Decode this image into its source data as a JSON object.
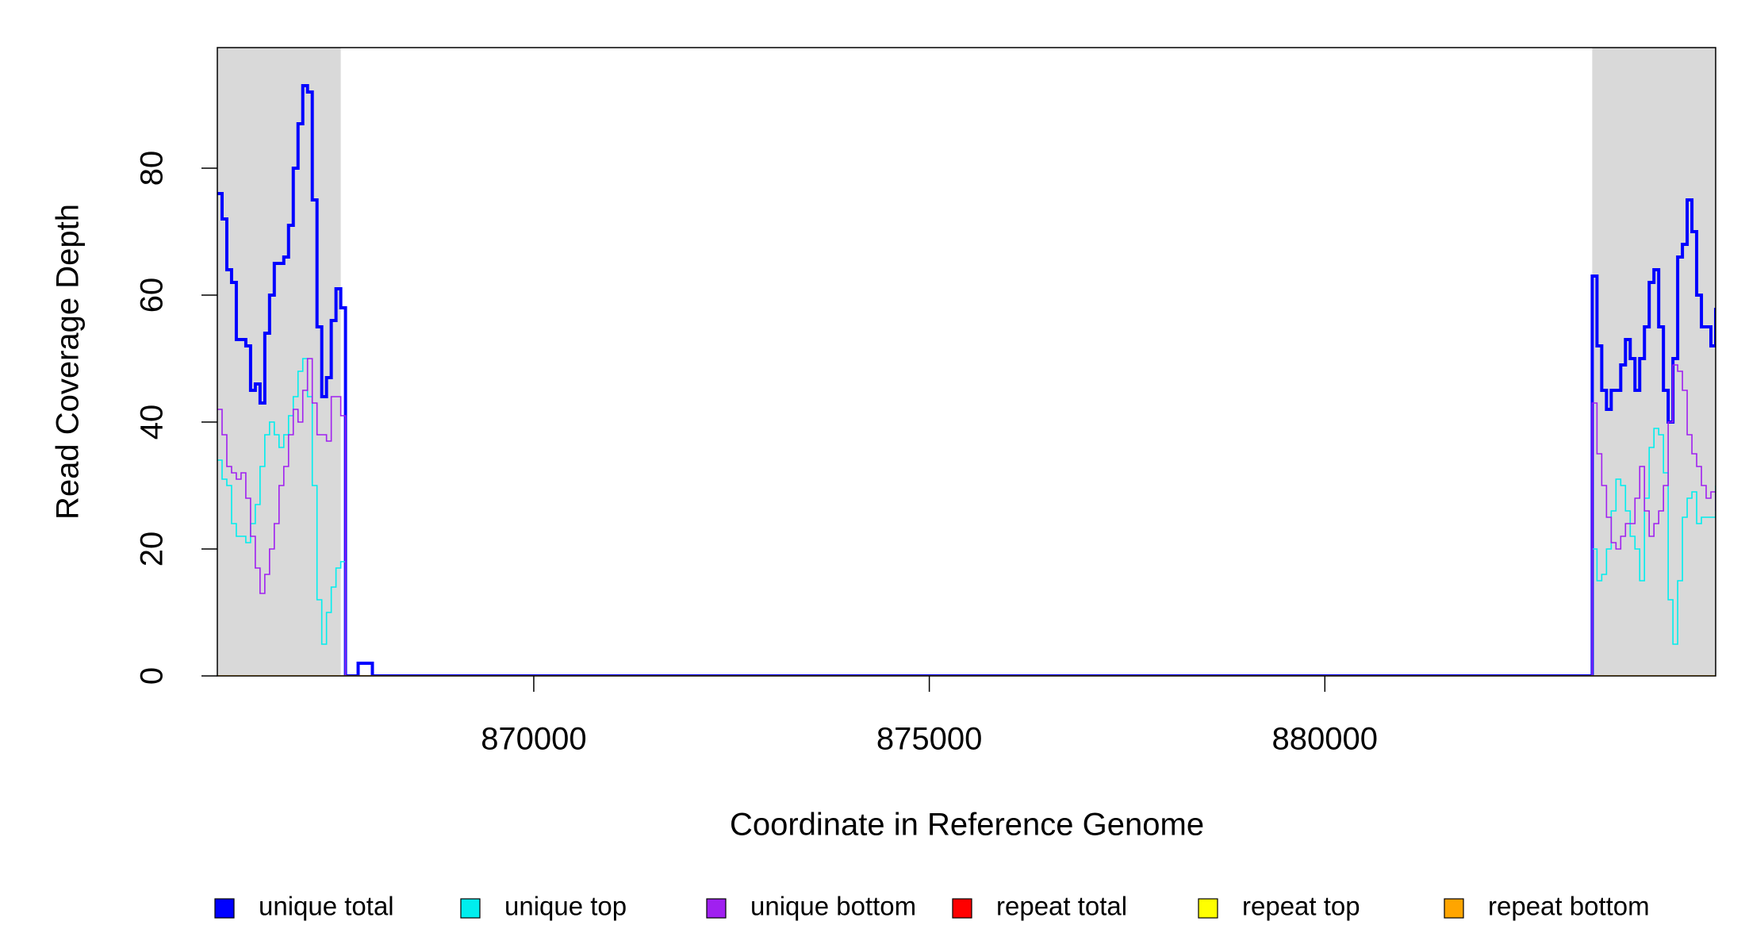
{
  "chart_data": {
    "type": "step",
    "xlabel": "Coordinate in Reference Genome",
    "ylabel": "Read Coverage Depth",
    "xlim": [
      866000,
      884940
    ],
    "ylim": [
      0,
      99
    ],
    "xticks": [
      870000,
      875000,
      880000
    ],
    "yticks": [
      0,
      20,
      40,
      60,
      80
    ],
    "shaded_regions": [
      [
        866000,
        867560
      ],
      [
        883380,
        884940
      ]
    ],
    "shade_color": "#d9d9d9",
    "legend": "bottom",
    "x": [
      866000,
      866060,
      866120,
      866180,
      866240,
      866300,
      866360,
      866420,
      866480,
      866540,
      866600,
      866660,
      866720,
      866780,
      866840,
      866900,
      866960,
      867020,
      867080,
      867140,
      867200,
      867260,
      867320,
      867380,
      867440,
      867500,
      867560,
      867620,
      867780,
      867960,
      883380,
      883440,
      883500,
      883560,
      883620,
      883680,
      883740,
      883800,
      883860,
      883920,
      883980,
      884040,
      884100,
      884160,
      884220,
      884280,
      884340,
      884400,
      884460,
      884520,
      884580,
      884640,
      884700,
      884760,
      884820,
      884880,
      884940
    ],
    "series": [
      {
        "name": "unique total",
        "color": "#0000ff",
        "width": 4,
        "values": [
          76,
          72,
          64,
          62,
          53,
          53,
          52,
          45,
          46,
          43,
          54,
          60,
          65,
          65,
          66,
          71,
          80,
          87,
          93,
          92,
          75,
          55,
          44,
          47,
          56,
          61,
          58,
          0,
          2,
          0,
          63,
          52,
          45,
          42,
          45,
          45,
          49,
          53,
          50,
          45,
          50,
          55,
          62,
          64,
          55,
          45,
          40,
          50,
          66,
          68,
          75,
          70,
          60,
          55,
          55,
          52,
          58
        ]
      },
      {
        "name": "unique top",
        "color": "#00eeee",
        "width": 1.6,
        "values": [
          34,
          31,
          30,
          24,
          22,
          22,
          21,
          24,
          27,
          33,
          38,
          40,
          38,
          36,
          38,
          41,
          44,
          48,
          50,
          44,
          30,
          12,
          5,
          10,
          14,
          17,
          18,
          0,
          0,
          0,
          20,
          15,
          16,
          20,
          26,
          31,
          30,
          26,
          22,
          20,
          15,
          28,
          36,
          39,
          38,
          32,
          12,
          5,
          15,
          25,
          28,
          29,
          24,
          25,
          25,
          25,
          30
        ]
      },
      {
        "name": "unique bottom",
        "color": "#a020f0",
        "width": 1.6,
        "values": [
          42,
          38,
          33,
          32,
          31,
          32,
          28,
          22,
          17,
          13,
          16,
          20,
          24,
          30,
          33,
          38,
          42,
          40,
          45,
          50,
          43,
          38,
          38,
          37,
          44,
          44,
          41,
          0,
          0,
          0,
          43,
          35,
          30,
          25,
          21,
          20,
          22,
          24,
          24,
          28,
          33,
          26,
          22,
          24,
          26,
          30,
          40,
          49,
          48,
          45,
          38,
          35,
          33,
          30,
          28,
          29,
          26
        ]
      },
      {
        "name": "repeat total",
        "color": "#ff0000",
        "width": 1.6,
        "values": [
          0,
          0,
          0,
          0,
          0,
          0,
          0,
          0,
          0,
          0,
          0,
          0,
          0,
          0,
          0,
          0,
          0,
          0,
          0,
          0,
          0,
          0,
          0,
          0,
          0,
          0,
          0,
          0,
          0,
          0,
          0,
          0,
          0,
          0,
          0,
          0,
          0,
          0,
          0,
          0,
          0,
          0,
          0,
          0,
          0,
          0,
          0,
          0,
          0,
          0,
          0,
          0,
          0,
          0,
          0,
          0,
          0
        ]
      },
      {
        "name": "repeat top",
        "color": "#ffff00",
        "width": 1.6,
        "values": [
          0,
          0,
          0,
          0,
          0,
          0,
          0,
          0,
          0,
          0,
          0,
          0,
          0,
          0,
          0,
          0,
          0,
          0,
          0,
          0,
          0,
          0,
          0,
          0,
          0,
          0,
          0,
          0,
          0,
          0,
          0,
          0,
          0,
          0,
          0,
          0,
          0,
          0,
          0,
          0,
          0,
          0,
          0,
          0,
          0,
          0,
          0,
          0,
          0,
          0,
          0,
          0,
          0,
          0,
          0,
          0,
          0
        ]
      },
      {
        "name": "repeat bottom",
        "color": "#ffa500",
        "width": 1.6,
        "values": [
          0,
          0,
          0,
          0,
          0,
          0,
          0,
          0,
          0,
          0,
          0,
          0,
          0,
          0,
          0,
          0,
          0,
          0,
          0,
          0,
          0,
          0,
          0,
          0,
          0,
          0,
          0,
          0,
          0,
          0,
          0,
          0,
          0,
          0,
          0,
          0,
          0,
          0,
          0,
          0,
          0,
          0,
          0,
          0,
          0,
          0,
          0,
          0,
          0,
          0,
          0,
          0,
          0,
          0,
          0,
          0,
          0
        ]
      }
    ]
  }
}
